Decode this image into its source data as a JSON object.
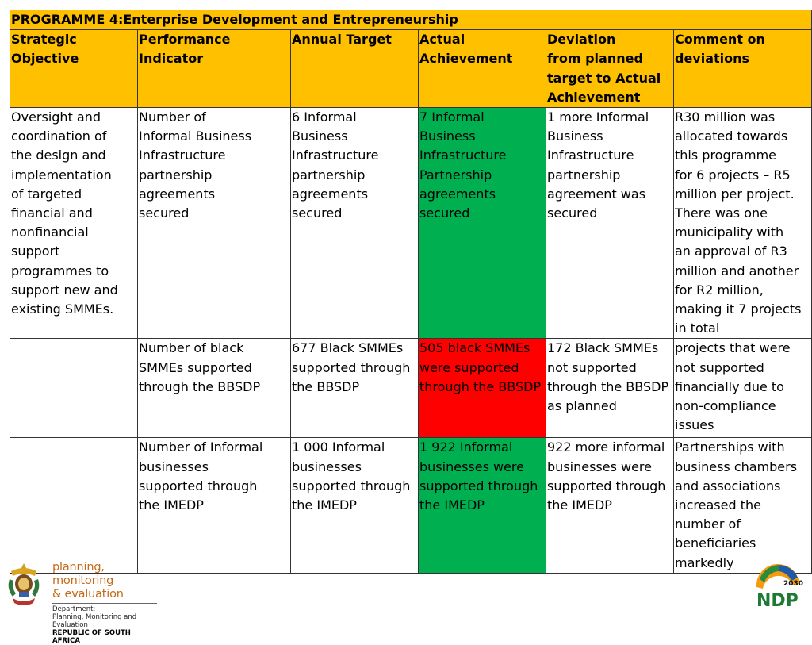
{
  "programme_title": "PROGRAMME 4:Enterprise Development and Entrepreneurship",
  "headers": [
    "Strategic\nObjective",
    "Performance Indicator",
    "Annual Target",
    "Actual\nAchievement",
    "Deviation\nfrom planned\ntarget to Actual\nAchievement",
    "Comment on\ndeviations"
  ],
  "rows": [
    {
      "objective": "Oversight and\ncoordination of\nthe design and\nimplementation\nof targeted\nfinancial and\nnonfinancial\nsupport\nprogrammes to\nsupport new and\nexisting SMMEs.",
      "indicator": "Number of\nInformal Business\nInfrastructure\npartnership\nagreements\nsecured",
      "target": "6 Informal\nBusiness\nInfrastructure\npartnership\nagreements\nsecured",
      "achievement": "7 Informal\nBusiness\nInfrastructure\nPartnership\nagreements\nsecured",
      "achievement_status": "green",
      "deviation": "1 more Informal\nBusiness\nInfrastructure\npartnership\nagreement was\nsecured",
      "comment": "R30 million was\nallocated towards\nthis programme\nfor 6 projects – R5\nmillion per project.\nThere was one\nmunicipality with\nan approval of R3\nmillion and another\nfor R2 million,\nmaking it 7 projects\nin total"
    },
    {
      "objective": "",
      "indicator": "Number of black\nSMMEs supported\nthrough the BBSDP",
      "target": "677 Black SMMEs\nsupported through\nthe BBSDP",
      "achievement": "505 black SMMEs\nwere supported\nthrough the BBSDP",
      "achievement_status": "red",
      "deviation": "172 Black SMMEs\nnot supported\nthrough the BBSDP\nas planned",
      "comment": "projects that were\nnot supported\nfinancially due to\nnon-compliance\nissues"
    },
    {
      "objective": "",
      "indicator": "Number of Informal\nbusinesses\nsupported through\nthe IMEDP",
      "target": "1 000 Informal\nbusinesses\nsupported through\nthe IMEDP",
      "achievement": "1 922 Informal\nbusinesses were\nsupported through\nthe IMEDP",
      "achievement_status": "green",
      "deviation": "922 more informal\nbusinesses were\nsupported through\nthe IMEDP",
      "comment": "Partnerships with\nbusiness chambers\nand associations\nincreased the\nnumber of\nbeneficiaries\nmarkedly"
    }
  ],
  "footer": {
    "dpme_line1": "planning, monitoring",
    "dpme_line2": "& evaluation",
    "dpme_line3": "Department:",
    "dpme_line4": "Planning, Monitoring and Evaluation",
    "dpme_line5": "REPUBLIC OF SOUTH AFRICA",
    "ndp_text": "NDP",
    "ndp_year": "2030"
  },
  "colors": {
    "header_bg": "#ffc000",
    "status_green": "#00b050",
    "status_red": "#ff0000"
  }
}
